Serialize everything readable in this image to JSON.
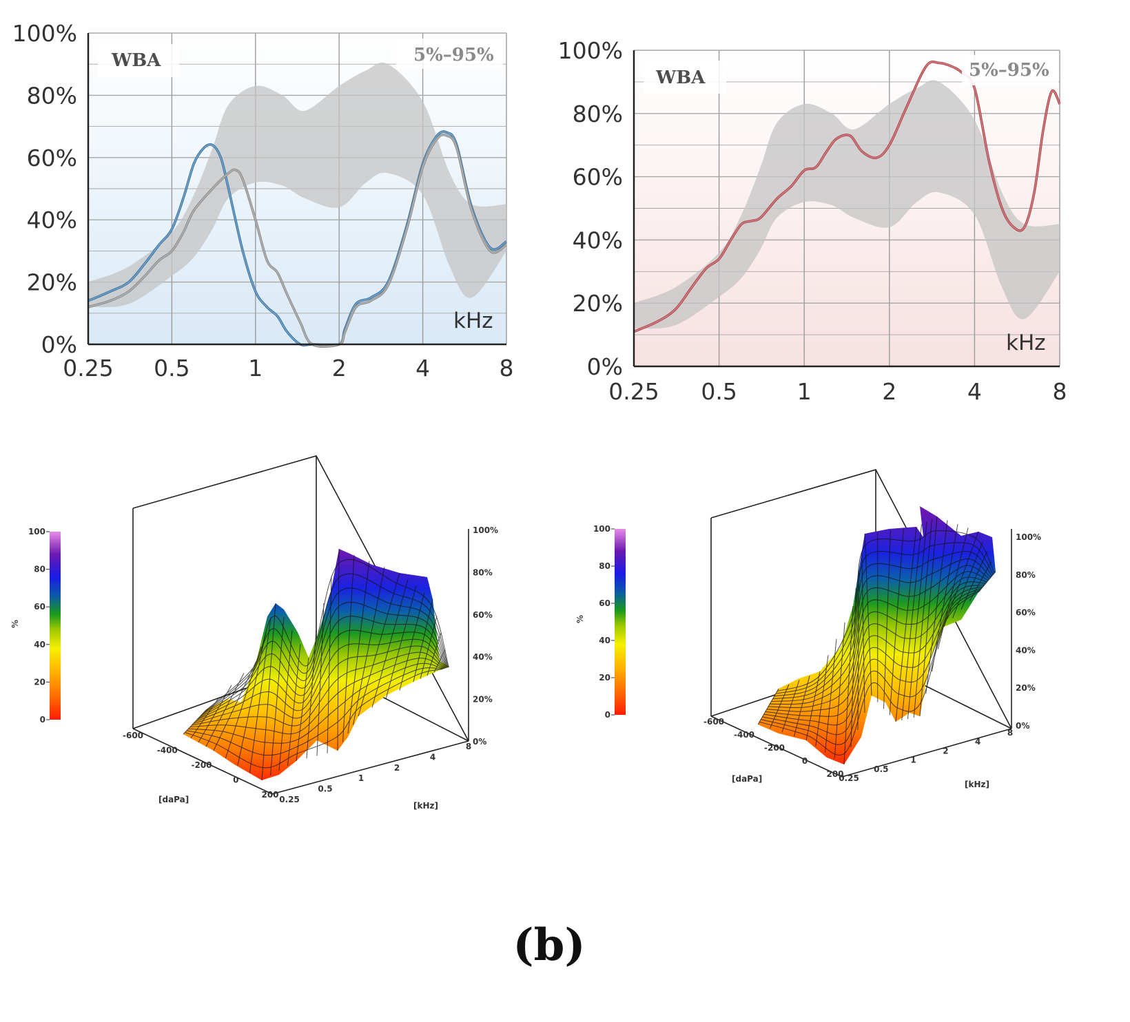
{
  "figure": {
    "panel_label": "(b)"
  },
  "chart_data": [
    {
      "type": "line",
      "id": "wba-left",
      "box_label": "WBA",
      "range_label": "5%–95%",
      "xlabel": "kHz",
      "x_scale": "log2",
      "x_ticks": [
        0.25,
        0.5,
        1,
        2,
        4,
        8
      ],
      "x_tick_labels": [
        "0.25",
        "0.5",
        "1",
        "2",
        "4",
        "8"
      ],
      "y_ticks": [
        0,
        20,
        40,
        60,
        80,
        100
      ],
      "y_tick_labels": [
        "0%",
        "20%",
        "40%",
        "60%",
        "80%",
        "100%"
      ],
      "ylim": [
        0,
        100
      ],
      "background": "#e8f1f8",
      "norm_band": {
        "x": [
          0.25,
          0.35,
          0.5,
          0.6,
          0.7,
          0.8,
          1.0,
          1.25,
          1.5,
          2.0,
          2.5,
          3.0,
          4.0,
          5.0,
          6.0,
          8.0
        ],
        "low": [
          12,
          13,
          22,
          28,
          37,
          47,
          52,
          51,
          47,
          44,
          52,
          55,
          48,
          25,
          15,
          30
        ],
        "high": [
          20,
          25,
          36,
          48,
          63,
          77,
          83,
          80,
          75,
          83,
          88,
          90,
          78,
          55,
          45,
          45
        ]
      },
      "series": [
        {
          "name": "blue",
          "color": "#3d78a8",
          "x": [
            0.25,
            0.3,
            0.35,
            0.4,
            0.45,
            0.5,
            0.55,
            0.6,
            0.65,
            0.7,
            0.75,
            0.8,
            0.9,
            1.0,
            1.1,
            1.2,
            1.3,
            1.45,
            1.6,
            2.0,
            2.1,
            2.3,
            2.6,
            3.0,
            3.5,
            4.0,
            4.5,
            4.9,
            5.3,
            6.0,
            7.0,
            8.0
          ],
          "y": [
            14,
            17,
            20,
            26,
            32,
            37,
            47,
            58,
            63,
            64,
            60,
            50,
            30,
            17,
            12,
            9,
            4,
            0,
            0,
            0,
            5,
            13,
            15,
            20,
            38,
            58,
            67,
            68,
            64,
            44,
            31,
            33
          ]
        },
        {
          "name": "gray",
          "color": "#8f8f8f",
          "x": [
            0.25,
            0.3,
            0.35,
            0.4,
            0.45,
            0.5,
            0.55,
            0.6,
            0.7,
            0.8,
            0.85,
            0.9,
            1.0,
            1.1,
            1.2,
            1.3,
            1.45,
            1.6,
            2.0,
            2.1,
            2.3,
            2.6,
            3.0,
            3.5,
            4.0,
            4.5,
            4.9,
            5.3,
            6.0,
            7.0,
            8.0
          ],
          "y": [
            12,
            14,
            17,
            22,
            27,
            30,
            36,
            43,
            50,
            55,
            56,
            53,
            40,
            27,
            23,
            16,
            7,
            0,
            0,
            4,
            12,
            14,
            19,
            37,
            57,
            66,
            67,
            63,
            43,
            30,
            32
          ]
        }
      ]
    },
    {
      "type": "line",
      "id": "wba-right",
      "box_label": "WBA",
      "range_label": "5%–95%",
      "xlabel": "kHz",
      "x_scale": "log2",
      "x_ticks": [
        0.25,
        0.5,
        1,
        2,
        4,
        8
      ],
      "x_tick_labels": [
        "0.25",
        "0.5",
        "1",
        "2",
        "4",
        "8"
      ],
      "y_ticks": [
        0,
        20,
        40,
        60,
        80,
        100
      ],
      "y_tick_labels": [
        "0%",
        "20%",
        "40%",
        "60%",
        "80%",
        "100%"
      ],
      "ylim": [
        0,
        100
      ],
      "background": "#f9ecec",
      "norm_band": {
        "x": [
          0.25,
          0.35,
          0.5,
          0.6,
          0.7,
          0.8,
          1.0,
          1.25,
          1.5,
          2.0,
          2.5,
          3.0,
          4.0,
          5.0,
          6.0,
          8.0
        ],
        "low": [
          12,
          13,
          22,
          28,
          37,
          47,
          52,
          51,
          47,
          44,
          52,
          55,
          48,
          25,
          15,
          30
        ],
        "high": [
          20,
          25,
          36,
          48,
          63,
          77,
          83,
          80,
          75,
          83,
          88,
          90,
          78,
          55,
          45,
          45
        ]
      },
      "series": [
        {
          "name": "red",
          "color": "#b4484e",
          "x": [
            0.25,
            0.3,
            0.35,
            0.4,
            0.45,
            0.5,
            0.55,
            0.6,
            0.65,
            0.7,
            0.8,
            0.9,
            1.0,
            1.1,
            1.2,
            1.3,
            1.45,
            1.6,
            1.8,
            2.0,
            2.3,
            2.7,
            3.0,
            3.3,
            3.6,
            4.0,
            4.5,
            5.0,
            5.5,
            6.0,
            6.5,
            7.0,
            7.5,
            8.0
          ],
          "y": [
            11,
            14,
            18,
            25,
            31,
            34,
            40,
            45,
            46,
            47,
            53,
            57,
            62,
            63,
            68,
            72,
            73,
            68,
            66,
            70,
            82,
            95,
            96,
            95,
            93,
            88,
            65,
            50,
            44,
            44,
            55,
            75,
            87,
            83
          ]
        }
      ]
    },
    {
      "type": "surface3d",
      "id": "surface-left",
      "colorbar_ticks": [
        0,
        20,
        40,
        60,
        80,
        100
      ],
      "colorbar_tick_labels": [
        "0",
        "20",
        "40",
        "60",
        "80",
        "100"
      ],
      "colorbar_label": "%",
      "z_tick_labels": [
        "0%",
        "20%",
        "40%",
        "60%",
        "80%",
        "100%"
      ],
      "pressure_ticks": [
        -600,
        -400,
        -200,
        0,
        200
      ],
      "pressure_tick_labels": [
        "-600",
        "-400",
        "-200",
        "0",
        "200"
      ],
      "frequency_tick_labels": [
        "0.25",
        "0.5",
        "1",
        "2",
        "4",
        "8"
      ],
      "pressure_label": "[daPa]",
      "frequency_label": "[kHz]"
    },
    {
      "type": "surface3d",
      "id": "surface-right",
      "colorbar_ticks": [
        0,
        20,
        40,
        60,
        80,
        100
      ],
      "colorbar_tick_labels": [
        "0",
        "20",
        "40",
        "60",
        "80",
        "100"
      ],
      "colorbar_label": "%",
      "z_tick_labels": [
        "0%",
        "20%",
        "40%",
        "60%",
        "80%",
        "100%"
      ],
      "pressure_ticks": [
        -600,
        -400,
        -200,
        0,
        200
      ],
      "pressure_tick_labels": [
        "-600",
        "-400",
        "-200",
        "0",
        "200"
      ],
      "frequency_tick_labels": [
        "0.25",
        "0.5",
        "1",
        "2",
        "4",
        "8"
      ],
      "pressure_label": "[daPa]",
      "frequency_label": "[kHz]"
    }
  ]
}
